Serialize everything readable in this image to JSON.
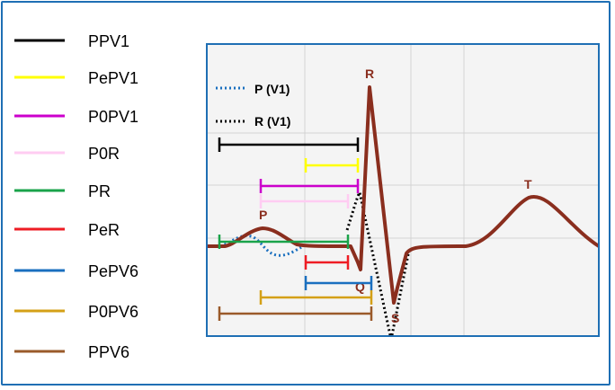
{
  "legend": {
    "items": [
      {
        "label": "PPV1",
        "color": "#000000"
      },
      {
        "label": "PePV1",
        "color": "#ffff00"
      },
      {
        "label": "P0PV1",
        "color": "#cc00cc"
      },
      {
        "label": "P0R",
        "color": "#ffccf2"
      },
      {
        "label": "PR",
        "color": "#1aa34a"
      },
      {
        "label": "PeR",
        "color": "#ee1c24"
      },
      {
        "label": "PePV6",
        "color": "#1a6fbf"
      },
      {
        "label": "P0PV6",
        "color": "#d4a017"
      },
      {
        "label": "PPV6",
        "color": "#9a5a2a"
      }
    ]
  },
  "plot": {
    "border_color": "#1f6fb4",
    "background": "#f4f4f4",
    "wave_color": "#8a2e1e",
    "dotted_legend": [
      {
        "label": "P (V1)",
        "color": "#1a6fbf",
        "style": "dotted"
      },
      {
        "label": "R (V1)",
        "color": "#000000",
        "style": "dotted"
      }
    ],
    "wave_labels": {
      "P": "P",
      "Q": "Q",
      "R": "R",
      "S": "S",
      "T": "T"
    }
  }
}
